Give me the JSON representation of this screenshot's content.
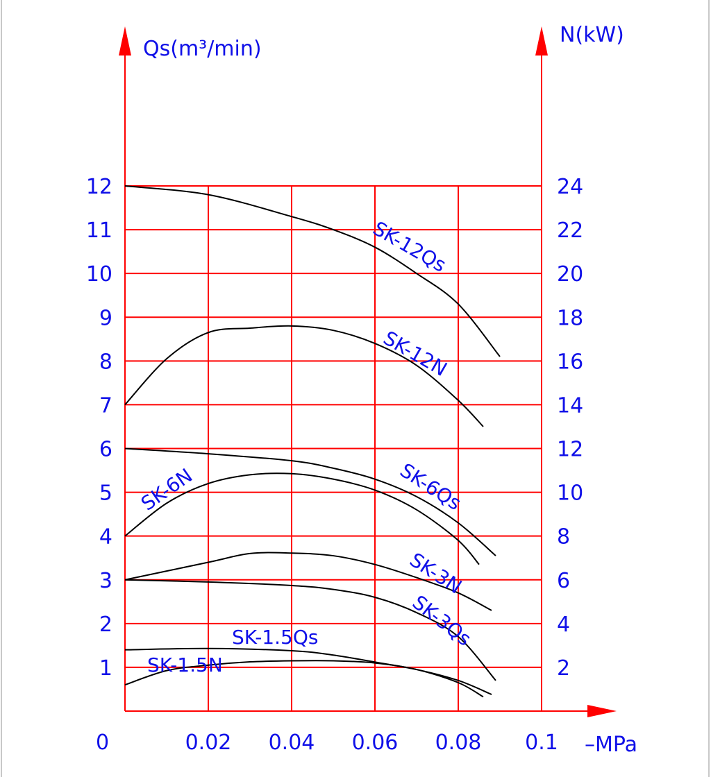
{
  "chart_data": {
    "type": "line",
    "x": {
      "label": "–MPa",
      "range": [
        0,
        0.1
      ],
      "ticks": [
        0.02,
        0.04,
        0.06,
        0.08,
        0.1
      ],
      "tick_labels": [
        "0.02",
        "0.04",
        "0.06",
        "0.08",
        "0.1"
      ],
      "origin_label": "0"
    },
    "y_left": {
      "label": "Qs(m³/min)",
      "range": [
        0,
        12
      ],
      "ticks": [
        1,
        2,
        3,
        4,
        5,
        6,
        7,
        8,
        9,
        10,
        11,
        12
      ],
      "tick_labels": [
        "1",
        "2",
        "3",
        "4",
        "5",
        "6",
        "7",
        "8",
        "9",
        "10",
        "11",
        "12"
      ]
    },
    "y_right": {
      "label": "N(kW)",
      "range": [
        0,
        24
      ],
      "ticks": [
        2,
        4,
        6,
        8,
        10,
        12,
        14,
        16,
        18,
        20,
        22,
        24
      ],
      "tick_labels": [
        "2",
        "4",
        "6",
        "8",
        "10",
        "12",
        "14",
        "16",
        "18",
        "20",
        "22",
        "24"
      ]
    },
    "grid": true,
    "colors": {
      "grid": "#ff0000",
      "text": "#1010e8",
      "curve": "#000000"
    },
    "series": [
      {
        "name": "SK-12Qs",
        "axis": "left",
        "x": [
          0,
          0.02,
          0.04,
          0.05,
          0.06,
          0.07,
          0.08,
          0.09
        ],
        "y": [
          12,
          11.8,
          11.3,
          11.0,
          10.6,
          10.0,
          9.3,
          8.1
        ]
      },
      {
        "name": "SK-12N",
        "axis": "right",
        "x": [
          0,
          0.01,
          0.02,
          0.03,
          0.04,
          0.05,
          0.06,
          0.07,
          0.08,
          0.086
        ],
        "y": [
          14,
          16.1,
          17.3,
          17.5,
          17.6,
          17.4,
          16.8,
          15.8,
          14.2,
          13.0
        ]
      },
      {
        "name": "SK-6Qs",
        "axis": "left",
        "x": [
          0,
          0.02,
          0.04,
          0.05,
          0.06,
          0.07,
          0.08,
          0.089
        ],
        "y": [
          6.0,
          5.88,
          5.72,
          5.55,
          5.3,
          4.9,
          4.3,
          3.55
        ]
      },
      {
        "name": "SK-6N",
        "axis": "right",
        "x": [
          0,
          0.01,
          0.02,
          0.03,
          0.04,
          0.05,
          0.06,
          0.07,
          0.08,
          0.085
        ],
        "y": [
          8.0,
          9.5,
          10.4,
          10.8,
          10.85,
          10.6,
          10.1,
          9.2,
          7.8,
          6.7
        ]
      },
      {
        "name": "SK-3N",
        "axis": "right",
        "x": [
          0,
          0.02,
          0.03,
          0.04,
          0.05,
          0.06,
          0.07,
          0.08,
          0.088
        ],
        "y": [
          6.0,
          6.8,
          7.2,
          7.22,
          7.1,
          6.7,
          6.1,
          5.4,
          4.6
        ]
      },
      {
        "name": "SK-3Qs",
        "axis": "left",
        "x": [
          0,
          0.02,
          0.04,
          0.05,
          0.06,
          0.07,
          0.08,
          0.089
        ],
        "y": [
          3.0,
          2.95,
          2.87,
          2.78,
          2.6,
          2.25,
          1.7,
          0.7
        ]
      },
      {
        "name": "SK-1.5Qs",
        "axis": "left",
        "x": [
          0,
          0.02,
          0.04,
          0.05,
          0.06,
          0.07,
          0.08,
          0.088
        ],
        "y": [
          1.4,
          1.43,
          1.38,
          1.28,
          1.12,
          0.95,
          0.7,
          0.38
        ]
      },
      {
        "name": "SK-1.5N",
        "axis": "right",
        "x": [
          0,
          0.01,
          0.02,
          0.03,
          0.04,
          0.05,
          0.06,
          0.07,
          0.08,
          0.086
        ],
        "y": [
          1.2,
          1.85,
          2.1,
          2.25,
          2.3,
          2.3,
          2.2,
          1.9,
          1.3,
          0.65
        ]
      }
    ]
  }
}
